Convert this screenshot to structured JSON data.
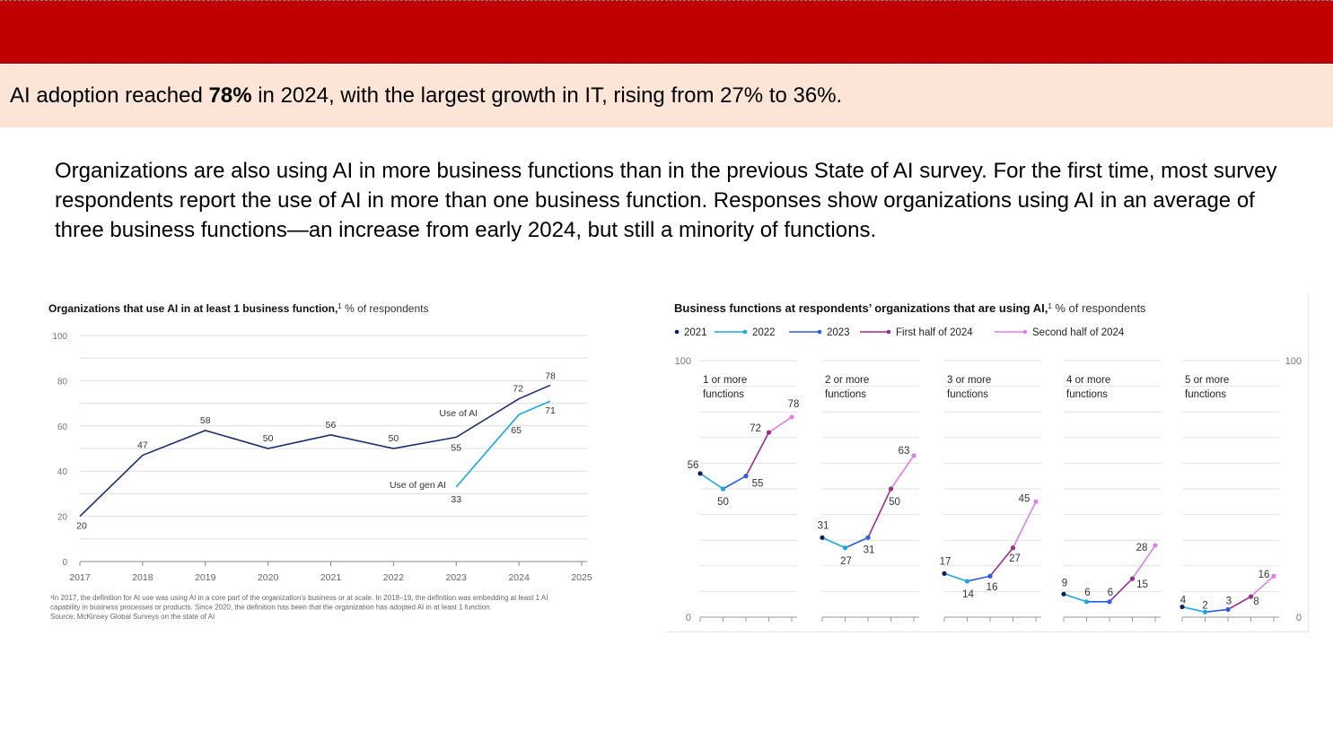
{
  "headline": {
    "prefix": "AI adoption reached ",
    "highlight": "78%",
    "suffix": " in 2024, with the largest growth in IT, rising from 27% to 36%."
  },
  "body_text": "Organizations are also using AI in more business functions than in the previous State of AI survey. For the first time, most survey respondents report the use of AI in more than one business function. Responses show organizations using AI in an average of three business functions—an increase from early 2024, but still a minority of functions.",
  "colors": {
    "topbar": "#c00000",
    "headline_bg": "#fce4d6",
    "use_of_ai": "#1b2f6e",
    "use_of_gen_ai": "#1aa7e0",
    "y2021": "#0b1f5c",
    "y2022": "#1aa7e0",
    "y2023": "#2f5be0",
    "h1_2024": "#9b2d8c",
    "h2_2024": "#df7fe6"
  },
  "chart_data": [
    {
      "type": "line",
      "title_bold": "Organizations that use AI in at least 1 business function,",
      "title_sup": "1",
      "title_rest": " % of respondents",
      "ylim": [
        0,
        100
      ],
      "yticks": [
        0,
        20,
        40,
        60,
        80,
        100
      ],
      "xticks": [
        "2017",
        "2018",
        "2019",
        "2020",
        "2021",
        "2022",
        "2023",
        "2024",
        "2025"
      ],
      "grid": true,
      "series": [
        {
          "name": "Use of AI",
          "points": [
            [
              2017,
              20
            ],
            [
              2018,
              47
            ],
            [
              2019,
              58
            ],
            [
              2020,
              50
            ],
            [
              2021,
              56
            ],
            [
              2022,
              50
            ],
            [
              2023,
              55
            ],
            [
              2024,
              72
            ],
            [
              2024.5,
              78
            ]
          ],
          "labels": [
            "20",
            "47",
            "58",
            "50",
            "56",
            "50",
            "55",
            "72",
            "78"
          ]
        },
        {
          "name": "Use of gen AI",
          "points": [
            [
              2023,
              33
            ],
            [
              2024,
              65
            ],
            [
              2024.5,
              71
            ]
          ],
          "labels": [
            "33",
            "65",
            "71"
          ]
        }
      ],
      "footnote": [
        "¹In 2017, the definition for AI use was using AI in a core part of the organization’s business or at scale. In 2018–19, the definition was embedding at least 1 AI",
        " capability in business processes or products. Since 2020, the definition has been that the organization has adopted AI in at least 1 function.",
        "Source: McKinsey Global Surveys on the state of AI"
      ]
    },
    {
      "type": "line",
      "title_bold": "Business functions at respondents’ organizations that are using AI,",
      "title_sup": "1",
      "title_rest": " % of respondents",
      "legend": [
        "2021",
        "2022",
        "2023",
        "First half of 2024",
        "Second half of 2024"
      ],
      "legend_position": "top-left",
      "ylim": [
        0,
        100
      ],
      "ytick_left": [
        "100",
        "0"
      ],
      "ytick_right": [
        "100",
        "0"
      ],
      "periods": [
        "2021",
        "2022",
        "2023",
        "First half of 2024",
        "Second half of 2024"
      ],
      "panels": [
        {
          "label_line1": "1 or more",
          "label_line2": "functions",
          "values": [
            56,
            50,
            55,
            72,
            78
          ],
          "labels": [
            "56",
            "50",
            "55",
            "72",
            "78"
          ]
        },
        {
          "label_line1": "2 or more",
          "label_line2": "functions",
          "values": [
            31,
            27,
            31,
            50,
            63
          ],
          "labels": [
            "31",
            "27",
            "31",
            "50",
            "63"
          ]
        },
        {
          "label_line1": "3 or more",
          "label_line2": "functions",
          "values": [
            17,
            14,
            16,
            27,
            45
          ],
          "labels": [
            "17",
            "14",
            "16",
            "27",
            "45"
          ]
        },
        {
          "label_line1": "4 or more",
          "label_line2": "functions",
          "values": [
            9,
            6,
            6,
            15,
            28
          ],
          "labels": [
            "9",
            "6",
            "6",
            "15",
            "28"
          ]
        },
        {
          "label_line1": "5 or more",
          "label_line2": "functions",
          "values": [
            4,
            2,
            3,
            8,
            16
          ],
          "labels": [
            "4",
            "2",
            "3",
            "8",
            "16"
          ]
        }
      ]
    }
  ]
}
